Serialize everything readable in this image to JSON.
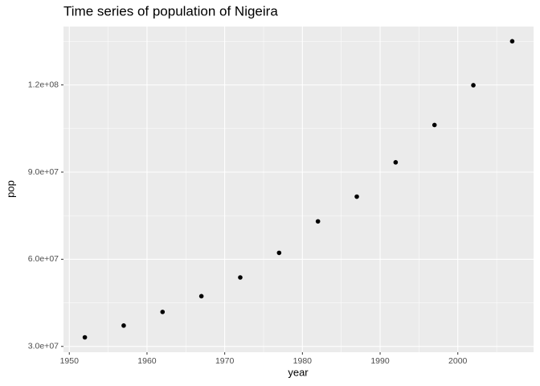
{
  "chart_data": {
    "type": "scatter",
    "title": "Time series of population of Nigeira",
    "x_label": "year",
    "y_label": "pop",
    "x": [
      1952,
      1957,
      1962,
      1967,
      1972,
      1977,
      1982,
      1987,
      1992,
      1997,
      2002,
      2007
    ],
    "values": [
      33119096,
      37173340,
      41871351,
      47287752,
      53740085,
      62209173,
      73039376,
      81551520,
      93364244,
      106207839,
      119901274,
      135031164
    ],
    "color": "#000000",
    "xlim": [
      1949.25,
      2009.75
    ],
    "xticks": [
      1950,
      1960,
      1970,
      1980,
      1990,
      2000
    ],
    "ylim": [
      28000000,
      140100000
    ],
    "yticks": [
      {
        "value": 30000000,
        "label": "3.0e+07"
      },
      {
        "value": 60000000,
        "label": "6.0e+07"
      },
      {
        "value": 90000000,
        "label": "9.0e+07"
      },
      {
        "value": 120000000,
        "label": "1.2e+08"
      }
    ],
    "grid": true
  }
}
